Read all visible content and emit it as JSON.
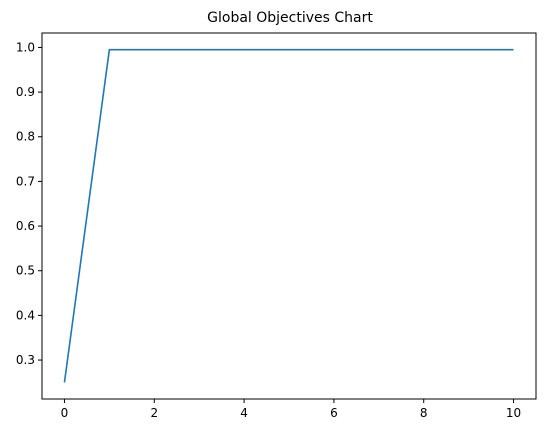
{
  "chart_data": {
    "type": "line",
    "title": "Global Objectives Chart",
    "xlabel": "",
    "ylabel": "",
    "x": [
      0,
      1,
      2,
      3,
      4,
      5,
      6,
      7,
      8,
      9,
      10
    ],
    "series": [
      {
        "values": [
          0.25,
          0.995,
          0.995,
          0.995,
          0.995,
          0.995,
          0.995,
          0.995,
          0.995,
          0.995,
          0.995
        ],
        "color": "#1f77b4"
      }
    ],
    "xlim": [
      -0.5,
      10.5
    ],
    "ylim": [
      0.2128,
      1.0323
    ],
    "xticks": [
      0,
      2,
      4,
      6,
      8,
      10
    ],
    "yticks": [
      0.3,
      0.4,
      0.5,
      0.6,
      0.7,
      0.8,
      0.9,
      1.0
    ],
    "ytick_labels": [
      "0.3",
      "0.4",
      "0.5",
      "0.6",
      "0.7",
      "0.8",
      "0.9",
      "1.0"
    ],
    "grid": false,
    "legend": "none"
  }
}
